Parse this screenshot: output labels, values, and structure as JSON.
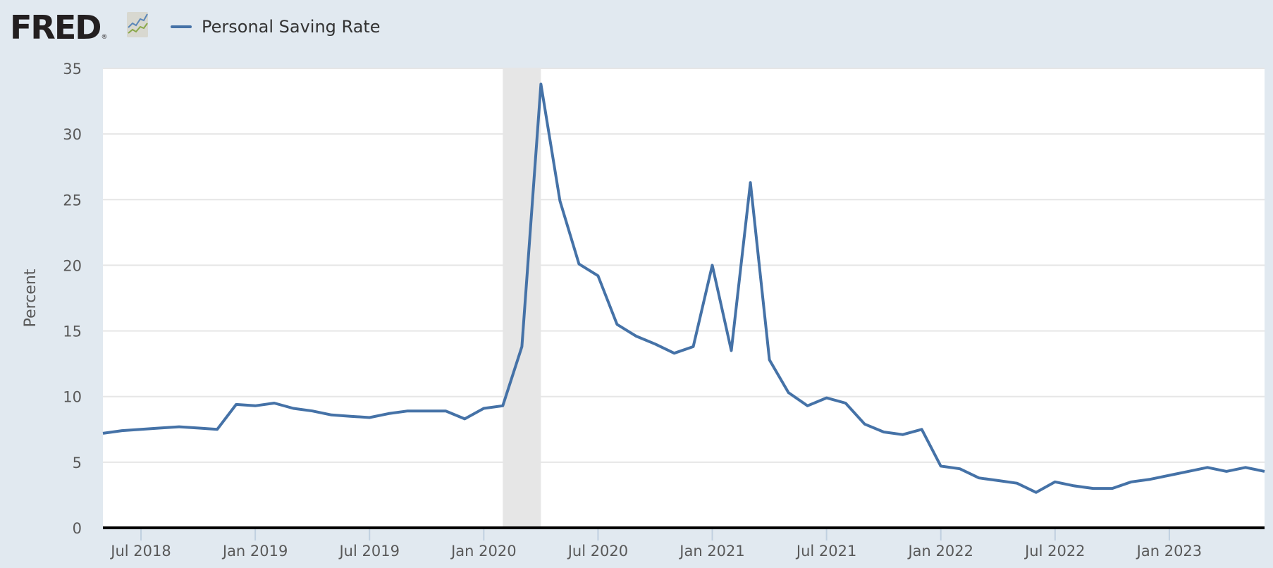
{
  "header": {
    "logo_text": "FRED",
    "logo_mark": "®",
    "logo_icon": "line-chart-icon"
  },
  "chart_data": {
    "type": "line",
    "title": "",
    "xlabel": "",
    "ylabel": "Percent",
    "ylim": [
      0,
      35
    ],
    "yticks": [
      0,
      5,
      10,
      15,
      20,
      25,
      30,
      35
    ],
    "xtick_labels": [
      "Jul 2018",
      "Jan 2019",
      "Jul 2019",
      "Jan 2020",
      "Jul 2020",
      "Jan 2021",
      "Jul 2021",
      "Jan 2022",
      "Jul 2022",
      "Jan 2023"
    ],
    "grid": true,
    "legend_position": "top-left",
    "recession_shading": {
      "start": "2020-02",
      "end": "2020-04",
      "color": "#e6e6e6"
    },
    "series": [
      {
        "name": "Personal Saving Rate",
        "color": "#4572a7",
        "x": [
          "2018-05",
          "2018-06",
          "2018-07",
          "2018-08",
          "2018-09",
          "2018-10",
          "2018-11",
          "2018-12",
          "2019-01",
          "2019-02",
          "2019-03",
          "2019-04",
          "2019-05",
          "2019-06",
          "2019-07",
          "2019-08",
          "2019-09",
          "2019-10",
          "2019-11",
          "2019-12",
          "2020-01",
          "2020-02",
          "2020-03",
          "2020-04",
          "2020-05",
          "2020-06",
          "2020-07",
          "2020-08",
          "2020-09",
          "2020-10",
          "2020-11",
          "2020-12",
          "2021-01",
          "2021-02",
          "2021-03",
          "2021-04",
          "2021-05",
          "2021-06",
          "2021-07",
          "2021-08",
          "2021-09",
          "2021-10",
          "2021-11",
          "2021-12",
          "2022-01",
          "2022-02",
          "2022-03",
          "2022-04",
          "2022-05",
          "2022-06",
          "2022-07",
          "2022-08",
          "2022-09",
          "2022-10",
          "2022-11",
          "2022-12",
          "2023-01",
          "2023-02",
          "2023-03",
          "2023-04",
          "2023-05",
          "2023-06"
        ],
        "values": [
          7.2,
          7.4,
          7.5,
          7.6,
          7.7,
          7.6,
          7.5,
          9.4,
          9.3,
          9.5,
          9.1,
          8.9,
          8.6,
          8.5,
          8.4,
          8.7,
          8.9,
          8.9,
          8.9,
          8.3,
          9.1,
          9.3,
          13.8,
          33.8,
          24.9,
          20.1,
          19.2,
          15.5,
          14.6,
          14.0,
          13.3,
          13.8,
          20.0,
          13.5,
          26.3,
          12.8,
          10.3,
          9.3,
          9.9,
          9.5,
          7.9,
          7.3,
          7.1,
          7.5,
          4.7,
          4.5,
          3.8,
          3.6,
          3.4,
          2.7,
          3.5,
          3.2,
          3.0,
          3.0,
          3.5,
          3.7,
          4.0,
          4.3,
          4.6,
          4.3,
          4.6,
          4.3
        ]
      }
    ]
  }
}
